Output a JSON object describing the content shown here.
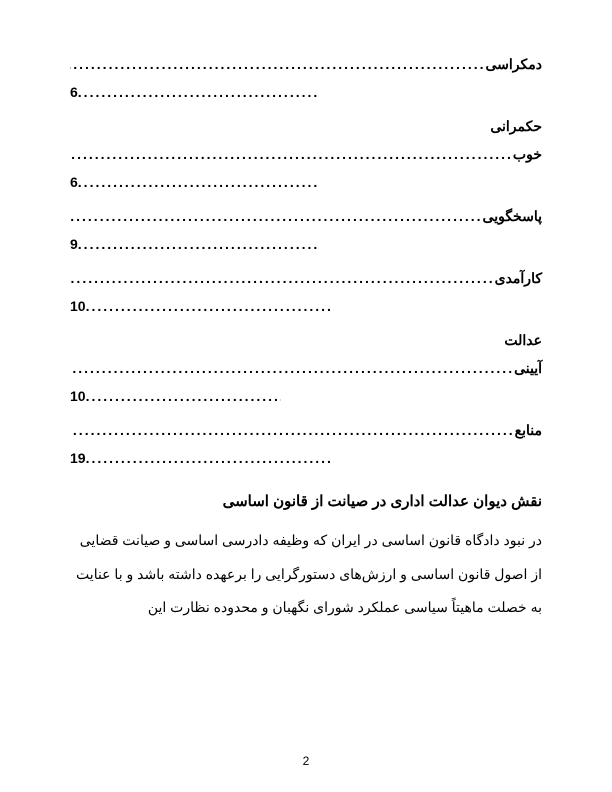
{
  "toc": [
    {
      "title": "دمکراسی",
      "page": "6",
      "dotsWidth": 240
    },
    {
      "title": "حکمرانی خوب",
      "page": "6",
      "multiline": true,
      "dotsWidth": 240
    },
    {
      "title": "پاسخگویی",
      "page": "9",
      "dotsWidth": 240
    },
    {
      "title": "کارآمدی",
      "page": "10",
      "dotsWidth": 248
    },
    {
      "title": "عدالت آیینی",
      "page": "10",
      "multiline": true,
      "dotsWidth": 195
    },
    {
      "title": "منابع",
      "page": "19",
      "dotsWidth": 248
    }
  ],
  "heading": "نقش دیوان عدالت اداری در صیانت از قانون اساسی",
  "body": "در نبود دادگاه قانون اساسی در ایران که وظیفه دادرسی اساسی و صیانت قضایی از اصول قانون اساسی و ارزش‌های دستورگرایی را برعهده داشته باشد و با عنایت به خصلت ماهیتاً سیاسی عملکرد شورای نگهبان و محدوده نظارت این",
  "pageNumber": "2",
  "dots": "............................................................................................................................"
}
